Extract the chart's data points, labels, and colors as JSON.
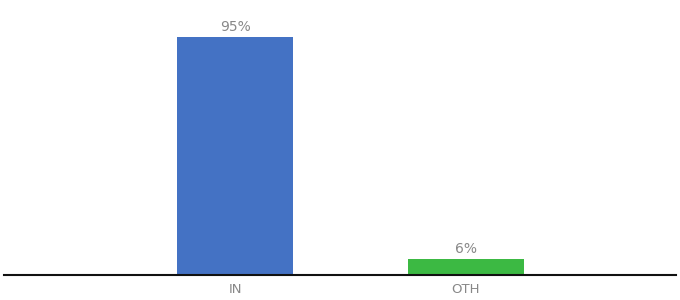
{
  "categories": [
    "IN",
    "OTH"
  ],
  "values": [
    95,
    6
  ],
  "bar_colors": [
    "#4472c4",
    "#3cb943"
  ],
  "label_texts": [
    "95%",
    "6%"
  ],
  "ylim": [
    0,
    108
  ],
  "background_color": "#ffffff",
  "bar_width": 0.55,
  "label_fontsize": 10,
  "tick_fontsize": 9.5,
  "tick_color": "#888888",
  "axis_line_color": "#111111",
  "xlim": [
    -0.8,
    2.4
  ],
  "x_positions": [
    0.3,
    1.4
  ]
}
